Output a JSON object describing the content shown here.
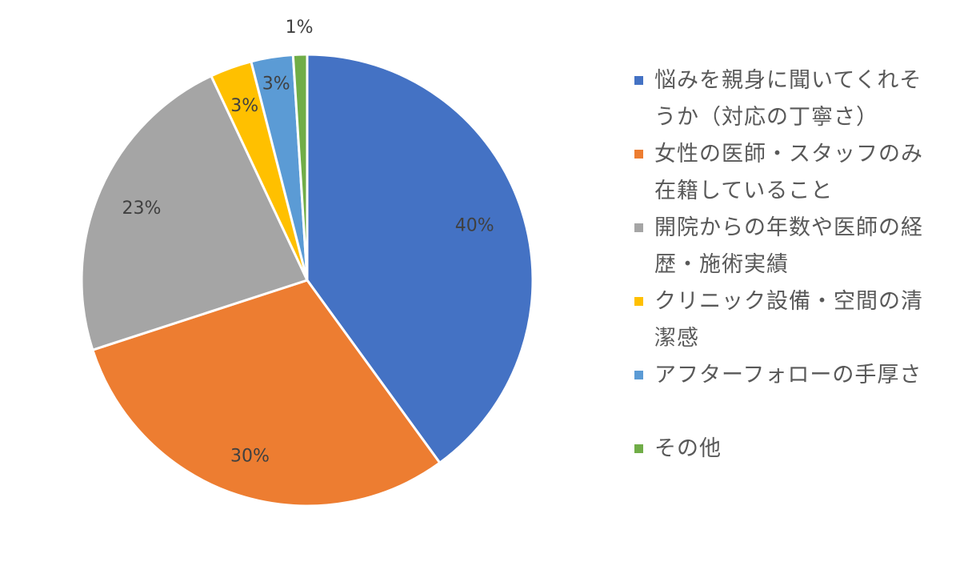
{
  "chart_data": {
    "type": "pie",
    "start_angle_deg": 0,
    "direction": "clockwise",
    "legend_position": "right",
    "slices": [
      {
        "label": "悩みを親身に聞いてくれそうか（対応の丁寧さ）",
        "value": 40,
        "display": "40%",
        "color": "#4472C4"
      },
      {
        "label": "女性の医師・スタッフのみ在籍していること",
        "value": 30,
        "display": "30%",
        "color": "#ED7D31"
      },
      {
        "label": "開院からの年数や医師の経歴・施術実績",
        "value": 23,
        "display": "23%",
        "color": "#A5A5A5"
      },
      {
        "label": "クリニック設備・空間の清潔感",
        "value": 3,
        "display": "3%",
        "color": "#FFC000"
      },
      {
        "label": "アフターフォローの手厚さ",
        "value": 3,
        "display": "3%",
        "color": "#5B9BD5"
      },
      {
        "label": "その他",
        "value": 1,
        "display": "1%",
        "color": "#70AD47"
      }
    ]
  }
}
